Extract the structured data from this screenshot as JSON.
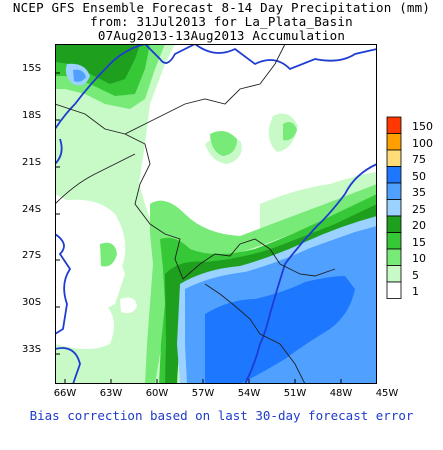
{
  "title": {
    "line1": "NCEP GFS Ensemble Forecast 8-14 Day Precipitation (mm)",
    "line2": "from: 31Jul2013  for La_Plata_Basin",
    "line3": "07Aug2013-13Aug2013 Accumulation"
  },
  "map": {
    "latitude_labels": [
      "15S",
      "18S",
      "21S",
      "24S",
      "27S",
      "30S",
      "33S"
    ],
    "longitude_labels": [
      "66W",
      "63W",
      "60W",
      "57W",
      "54W",
      "51W",
      "48W",
      "45W"
    ]
  },
  "legend": {
    "levels": [
      "150",
      "100",
      "75",
      "50",
      "35",
      "25",
      "20",
      "15",
      "10",
      "5",
      "1"
    ],
    "colors": [
      "#ff3800",
      "#ffa000",
      "#ffdc78",
      "#1e78ff",
      "#50a0ff",
      "#9bd2ff",
      "#1ea01e",
      "#37c837",
      "#78ea78",
      "#c8fac8",
      "#ffffff"
    ]
  },
  "footer": "Bias correction based on last 30-day forecast error"
}
